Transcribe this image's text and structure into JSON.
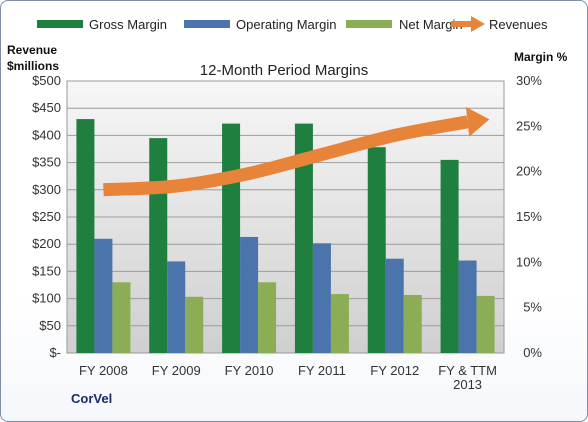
{
  "chart_data": {
    "type": "bar",
    "title": "12-Month Period Margins",
    "company": "CorVel",
    "y_left_label_line1": "Revenue",
    "y_left_label_line2": "$millions",
    "y_right_label": "Margin %",
    "categories": [
      "FY 2008",
      "FY 2009",
      "FY 2010",
      "FY 2011",
      "FY 2012",
      "FY & TTM 2013"
    ],
    "category_lines": [
      [
        "FY 2008"
      ],
      [
        "FY 2009"
      ],
      [
        "FY 2010"
      ],
      [
        "FY 2011"
      ],
      [
        "FY 2012"
      ],
      [
        "FY & TTM",
        "2013"
      ]
    ],
    "ylim_left": [
      0,
      500
    ],
    "ylim_right": [
      0,
      30
    ],
    "left_ticks": [
      "$-",
      "$50",
      "$100",
      "$150",
      "$200",
      "$250",
      "$300",
      "$350",
      "$400",
      "$450",
      "$500"
    ],
    "right_ticks": [
      "0%",
      "5%",
      "10%",
      "15%",
      "20%",
      "25%",
      "30%"
    ],
    "series": [
      {
        "name": "Gross Margin",
        "axis": "right",
        "type": "bar",
        "color": "#1e7f3e",
        "values": [
          25.8,
          23.7,
          25.3,
          25.3,
          22.7,
          21.3
        ]
      },
      {
        "name": "Operating Margin",
        "axis": "right",
        "type": "bar",
        "color": "#4b74ac",
        "values": [
          12.6,
          10.1,
          12.8,
          12.1,
          10.4,
          10.2
        ]
      },
      {
        "name": "Net Margin",
        "axis": "right",
        "type": "bar",
        "color": "#8bad55",
        "values": [
          7.8,
          6.2,
          7.8,
          6.5,
          6.4,
          6.3
        ]
      },
      {
        "name": "Revenues",
        "axis": "left",
        "type": "line-arrow",
        "color": "#e8843a",
        "values": [
          300,
          307,
          330,
          365,
          400,
          425
        ]
      }
    ],
    "grid": true,
    "legend": "top"
  }
}
